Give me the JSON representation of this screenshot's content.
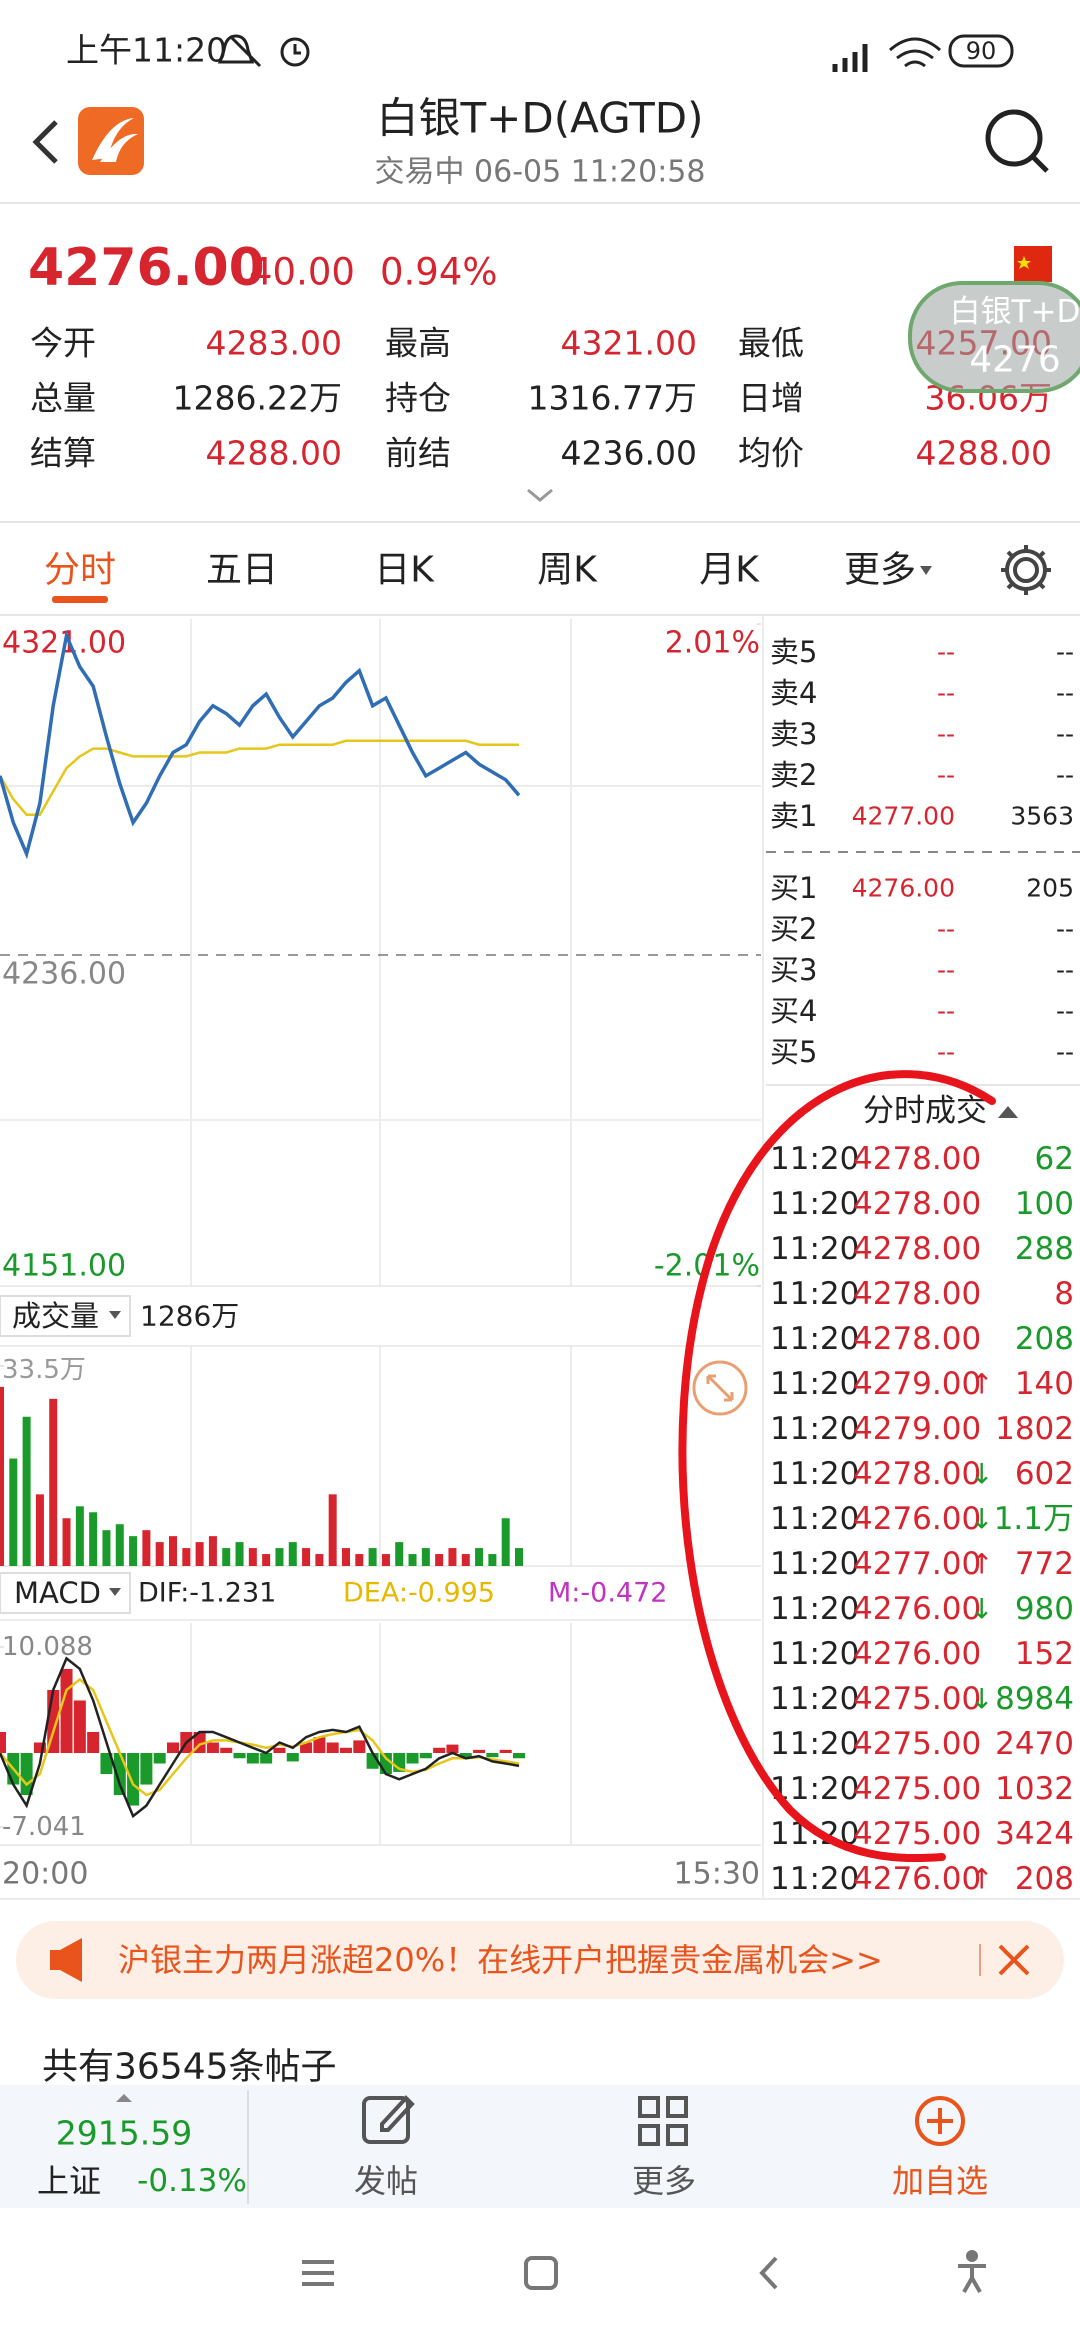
{
  "status_bar": {
    "time": "上午11:20",
    "battery": "90"
  },
  "header": {
    "title": "白银T+D(AGTD)",
    "subtitle": "交易中  06-05 11:20:58"
  },
  "quote": {
    "price": "4276.00",
    "change": "40.00",
    "change_pct": "0.94%",
    "rows": [
      [
        "今开",
        "4283.00",
        "最高",
        "4321.00",
        "最低",
        "4257.00"
      ],
      [
        "总量",
        "1286.22万",
        "持仓",
        "1316.77万",
        "日增",
        "36.06万"
      ],
      [
        "结算",
        "4288.00",
        "前结",
        "4236.00",
        "均价",
        "4288.00"
      ]
    ]
  },
  "float_widget": {
    "name": "白银T+D",
    "price": "4276"
  },
  "tabs": [
    "分时",
    "五日",
    "日K",
    "周K",
    "月K",
    "更多"
  ],
  "intraday": {
    "type": "line",
    "ylim": [
      4151,
      4321
    ],
    "yticks": [
      {
        "value": 4321,
        "label": "4321.00"
      },
      {
        "value": 4236,
        "label": "4236.00"
      },
      {
        "value": 4151,
        "label": "4151.00"
      }
    ],
    "y2lim": [
      -2.01,
      2.01
    ],
    "y2ticks": [
      {
        "value": 2.01,
        "label": "2.01%"
      },
      {
        "value": -2.01,
        "label": "-2.01%"
      }
    ],
    "price": [
      4282,
      4270,
      4262,
      4275,
      4300,
      4318,
      4310,
      4305,
      4292,
      4280,
      4270,
      4275,
      4282,
      4288,
      4290,
      4296,
      4300,
      4298,
      4295,
      4300,
      4303,
      4297,
      4292,
      4296,
      4300,
      4302,
      4306,
      4309,
      4300,
      4302,
      4295,
      4288,
      4282,
      4284,
      4286,
      4288,
      4285,
      4283,
      4281,
      4277
    ],
    "price_color": "#2f6db5",
    "avg": [
      4282,
      4276,
      4272,
      4272,
      4278,
      4284,
      4287,
      4289,
      4289,
      4288,
      4287,
      4287,
      4287,
      4287,
      4287,
      4288,
      4288,
      4288,
      4289,
      4289,
      4289,
      4290,
      4290,
      4290,
      4290,
      4290,
      4291,
      4291,
      4291,
      4291,
      4291,
      4291,
      4291,
      4291,
      4291,
      4291,
      4290,
      4290,
      4290,
      4290
    ],
    "avg_color": "#e6c619"
  },
  "order_book": {
    "asks": [
      [
        "卖5",
        "--",
        "--"
      ],
      [
        "卖4",
        "--",
        "--"
      ],
      [
        "卖3",
        "--",
        "--"
      ],
      [
        "卖2",
        "--",
        "--"
      ],
      [
        "卖1",
        "4277.00",
        "3563"
      ]
    ],
    "bids": [
      [
        "买1",
        "4276.00",
        "205"
      ],
      [
        "买2",
        "--",
        "--"
      ],
      [
        "买3",
        "--",
        "--"
      ],
      [
        "买4",
        "--",
        "--"
      ],
      [
        "买5",
        "--",
        "--"
      ]
    ]
  },
  "trades": {
    "title": "分时成交",
    "rows": [
      {
        "time": "11:20",
        "price": "4278.00",
        "qty": "62",
        "qty_color": "#1a9a2a"
      },
      {
        "time": "11:20",
        "price": "4278.00",
        "qty": "100",
        "qty_color": "#1a9a2a"
      },
      {
        "time": "11:20",
        "price": "4278.00",
        "qty": "288",
        "qty_color": "#1a9a2a"
      },
      {
        "time": "11:20",
        "price": "4278.00",
        "qty": "8",
        "qty_color": "#d6252f"
      },
      {
        "time": "11:20",
        "price": "4278.00",
        "qty": "208",
        "qty_color": "#1a9a2a"
      },
      {
        "time": "11:20",
        "price": "4279.00",
        "dir": "↑",
        "dir_color": "#d6252f",
        "qty": "140",
        "qty_color": "#d6252f"
      },
      {
        "time": "11:20",
        "price": "4279.00",
        "qty": "1802",
        "qty_color": "#d6252f"
      },
      {
        "time": "11:20",
        "price": "4278.00",
        "dir": "↓",
        "dir_color": "#1a9a2a",
        "qty": "602",
        "qty_color": "#d6252f"
      },
      {
        "time": "11:20",
        "price": "4276.00",
        "dir": "↓",
        "dir_color": "#1a9a2a",
        "qty": "1.1万",
        "qty_color": "#1a9a2a"
      },
      {
        "time": "11:20",
        "price": "4277.00",
        "dir": "↑",
        "dir_color": "#d6252f",
        "qty": "772",
        "qty_color": "#d6252f"
      },
      {
        "time": "11:20",
        "price": "4276.00",
        "dir": "↓",
        "dir_color": "#1a9a2a",
        "qty": "980",
        "qty_color": "#1a9a2a"
      },
      {
        "time": "11:20",
        "price": "4276.00",
        "qty": "152",
        "qty_color": "#d6252f"
      },
      {
        "time": "11:20",
        "price": "4275.00",
        "dir": "↓",
        "dir_color": "#1a9a2a",
        "qty": "8984",
        "qty_color": "#1a9a2a"
      },
      {
        "time": "11:20",
        "price": "4275.00",
        "qty": "2470",
        "qty_color": "#d6252f"
      },
      {
        "time": "11:20",
        "price": "4275.00",
        "qty": "1032",
        "qty_color": "#d6252f"
      },
      {
        "time": "11:20",
        "price": "4275.00",
        "qty": "3424",
        "qty_color": "#d6252f"
      },
      {
        "time": "11:20",
        "price": "4276.00",
        "dir": "↑",
        "dir_color": "#d6252f",
        "qty": "208",
        "qty_color": "#d6252f"
      }
    ]
  },
  "volume": {
    "type": "bar",
    "label": "成交量",
    "total": "1286万",
    "ylim": [
      0,
      33.5
    ],
    "yticks": [
      {
        "value": 33.5,
        "label": "33.5万"
      }
    ],
    "values": [
      30,
      18,
      25,
      12,
      28,
      8,
      10,
      9,
      6,
      7,
      5,
      6,
      4,
      5,
      3,
      4,
      5,
      3,
      4,
      3,
      2,
      3,
      4,
      3,
      2,
      12,
      3,
      2,
      3,
      2,
      4,
      2,
      3,
      2,
      3,
      2,
      3,
      2,
      8,
      3
    ],
    "up_color": "#d6252f",
    "down_color": "#1a9a2a"
  },
  "macd": {
    "type": "bar",
    "label": "MACD",
    "dif_label": "DIF:-1.231",
    "dea_label": "DEA:-0.995",
    "m_label": "M:-0.472",
    "ylim": [
      -7.041,
      10.088
    ],
    "yticks": [
      {
        "value": 10.088,
        "label": "10.088"
      },
      {
        "value": -7.041,
        "label": "-7.041"
      }
    ],
    "hist": [
      2,
      -3,
      -4,
      1,
      6,
      8,
      5,
      2,
      -2,
      -4,
      -5,
      -3,
      -1,
      1,
      2,
      2,
      1,
      0.5,
      -0.5,
      -1,
      -1,
      0.5,
      -0.8,
      1,
      1.5,
      1,
      0.5,
      1.2,
      -1.5,
      -2,
      -1.8,
      -1,
      -0.5,
      0.5,
      0.8,
      -0.5,
      0.3,
      -0.4,
      0.3,
      -0.5
    ],
    "dif": [
      0,
      -3,
      -5,
      -1,
      6,
      9,
      8,
      5,
      1,
      -3,
      -6,
      -5,
      -3,
      -1,
      1,
      2,
      2,
      1.5,
      1,
      0.5,
      0,
      1,
      0.5,
      1.5,
      2,
      2.2,
      2,
      2.5,
      0,
      -2,
      -2.5,
      -2,
      -1.5,
      -0.5,
      0,
      -0.5,
      -0.3,
      -0.8,
      -1,
      -1.231
    ],
    "dea": [
      0,
      -1.5,
      -3,
      -2,
      2,
      6,
      7,
      6,
      3,
      0,
      -3,
      -4,
      -3.5,
      -2,
      -0.5,
      0.8,
      1.2,
      1.2,
      1,
      0.8,
      0.5,
      0.8,
      0.6,
      1,
      1.5,
      1.8,
      2,
      2.2,
      1.2,
      -0.5,
      -1.5,
      -1.8,
      -1.6,
      -1,
      -0.5,
      -0.5,
      -0.4,
      -0.6,
      -0.8,
      -0.995
    ],
    "up_color": "#d6252f",
    "down_color": "#1a9a2a",
    "dif_color": "#222222",
    "dea_color": "#e6c619"
  },
  "time_axis": [
    "20:00",
    "15:30"
  ],
  "banner": {
    "text": "沪银主力两月涨超20%！在线开户把握贵金属机会>>"
  },
  "posts": {
    "text": "共有36545条帖子"
  },
  "bottom_bar": {
    "index_value": "2915.59",
    "index_name": "上证",
    "index_change": "-0.13%",
    "items": [
      "发帖",
      "更多",
      "加自选"
    ]
  }
}
